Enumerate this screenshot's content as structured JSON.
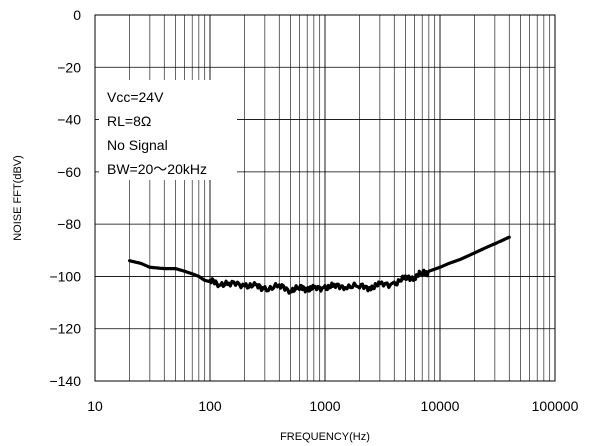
{
  "chart_data": {
    "type": "line",
    "xlabel": "FREQUENCY(Hz)",
    "ylabel": "NOISE FFT(dBV)",
    "xscale": "log",
    "xlim": [
      10,
      100000
    ],
    "ylim": [
      -140,
      0
    ],
    "x_ticks": [
      10,
      100,
      1000,
      10000,
      100000
    ],
    "x_tick_labels": [
      "10",
      "100",
      "1000",
      "10000",
      "100000"
    ],
    "y_ticks": [
      0,
      -20,
      -40,
      -60,
      -80,
      -100,
      -120,
      -140
    ],
    "y_tick_labels": [
      "0",
      "−20",
      "−40",
      "−60",
      "−80",
      "−100",
      "−120",
      "−140"
    ],
    "grid": true,
    "annotations": [
      "Vcc=24V",
      "RL=8Ω",
      "No Signal",
      "BW=20〜20kHz"
    ],
    "annotation_placement": "upper-left",
    "series": [
      {
        "color": "#000000",
        "x": [
          20,
          25,
          30,
          40,
          50,
          60,
          70,
          80,
          90,
          100,
          120,
          150,
          200,
          250,
          300,
          400,
          500,
          600,
          700,
          800,
          1000,
          1200,
          1500,
          2000,
          2500,
          3000,
          4000,
          5000,
          6000,
          7000,
          8000,
          10000,
          12000,
          15000,
          20000,
          25000,
          30000,
          40000
        ],
        "y": [
          -94,
          -95,
          -96.5,
          -97,
          -97,
          -98,
          -99,
          -100,
          -101.5,
          -102,
          -102.5,
          -103,
          -103,
          -104,
          -104.5,
          -104,
          -105,
          -104.5,
          -104.5,
          -105,
          -104,
          -104,
          -103.5,
          -104,
          -104,
          -103.5,
          -102.5,
          -101,
          -100,
          -99,
          -98,
          -96.5,
          -95,
          -93.5,
          -91,
          -89,
          -87.5,
          -85
        ]
      }
    ]
  }
}
